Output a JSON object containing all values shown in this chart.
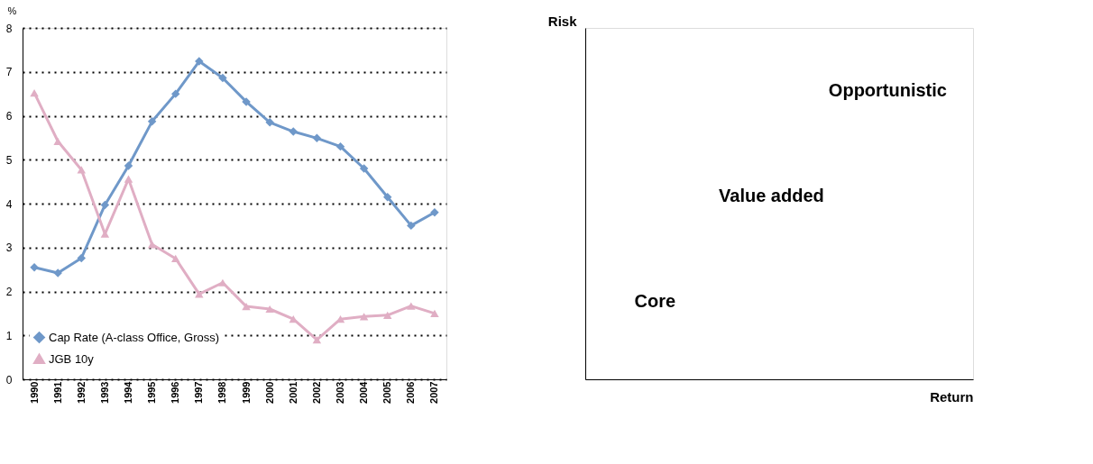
{
  "chart_data": [
    {
      "type": "line",
      "ylabel": "%",
      "categories": [
        "1990",
        "1991",
        "1992",
        "1993",
        "1994",
        "1995",
        "1996",
        "1997",
        "1998",
        "1999",
        "2000",
        "2001",
        "2002",
        "2003",
        "2004",
        "2005",
        "2006",
        "2007"
      ],
      "series": [
        {
          "name": "Cap Rate (A-class Office, Gross)",
          "color": "#6f98c9",
          "marker": "diamond",
          "values": [
            2.55,
            2.42,
            2.76,
            3.97,
            4.86,
            5.87,
            6.5,
            7.24,
            6.86,
            6.32,
            5.85,
            5.64,
            5.49,
            5.3,
            4.8,
            4.15,
            3.5,
            3.8
          ]
        },
        {
          "name": "JGB 10y",
          "color": "#e0aec4",
          "marker": "triangle",
          "values": [
            6.52,
            5.42,
            4.77,
            3.31,
            4.56,
            3.07,
            2.75,
            1.94,
            2.2,
            1.66,
            1.6,
            1.37,
            0.9,
            1.37,
            1.43,
            1.46,
            1.67,
            1.5
          ]
        }
      ],
      "ylim": [
        0,
        8
      ],
      "yticks": [
        0,
        1,
        2,
        3,
        4,
        5,
        6,
        7,
        8
      ],
      "grid": "y",
      "legend": "bottom left",
      "line_style": "solid"
    },
    {
      "type": "other",
      "ylabel": "Risk",
      "xlabel": "Return",
      "annotations": [
        "Opportunistic",
        "Value added",
        "Core"
      ]
    }
  ]
}
